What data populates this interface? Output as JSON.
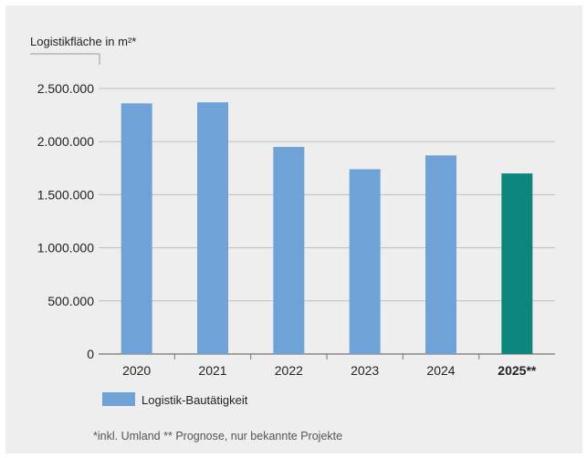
{
  "chart_data": {
    "type": "bar",
    "unit_label": "Logistikfläche in m²*",
    "categories": [
      "2020",
      "2021",
      "2022",
      "2023",
      "2024",
      "2025**"
    ],
    "series": [
      {
        "name": "Logistik-Bautätigkeit",
        "values": [
          2360000,
          2370000,
          1950000,
          1740000,
          1870000,
          1700000
        ]
      }
    ],
    "highlight_index": 5,
    "y_ticks": [
      "0",
      "500.000",
      "1.000.000",
      "1.500.000",
      "2.000.000",
      "2.500.000"
    ],
    "ylim": [
      0,
      2500000
    ],
    "grid": true,
    "legend_position": "bottom-left",
    "footnote": "*inkl. Umland  ** Prognose, nur bekannte Projekte",
    "colors": {
      "bar": "#6fa3d8",
      "highlight": "#0c857c",
      "grid": "#bdbdbd",
      "panel": "#eeeeee"
    }
  }
}
